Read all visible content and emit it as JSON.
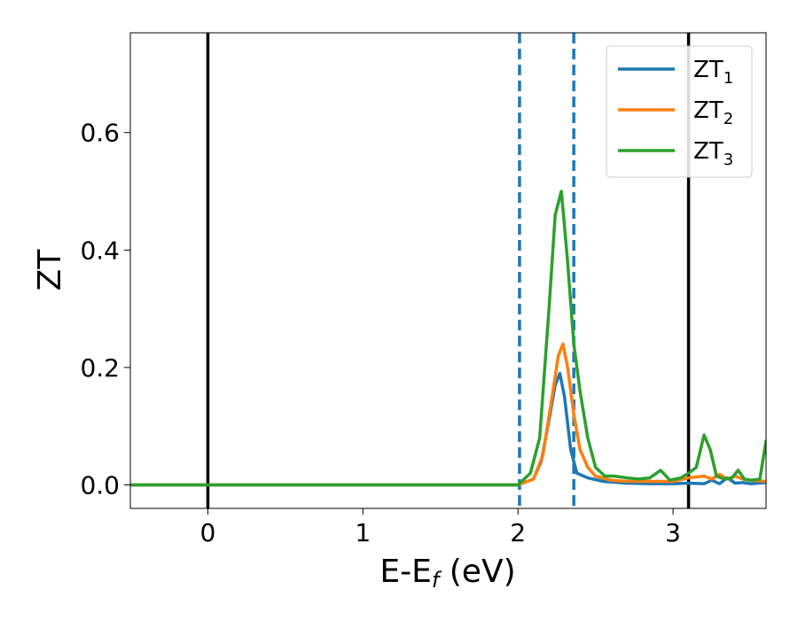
{
  "chart_data": {
    "type": "line",
    "title": "",
    "xlabel": "E-E",
    "xlabel_sub": "f",
    "xlabel_unit": " (eV)",
    "ylabel": "ZT",
    "xlim": [
      -0.5,
      3.6
    ],
    "ylim": [
      -0.04,
      0.77
    ],
    "x_ticks": [
      0,
      1,
      2,
      3
    ],
    "x_tick_labels": [
      "0",
      "1",
      "2",
      "3"
    ],
    "y_ticks": [
      0.0,
      0.2,
      0.4,
      0.6
    ],
    "y_tick_labels": [
      "0.0",
      "0.2",
      "0.4",
      "0.6"
    ],
    "grid": false,
    "legend_position": "top-right",
    "vlines": [
      {
        "x": 0.0,
        "style": "solid",
        "color": "#000000"
      },
      {
        "x": 3.1,
        "style": "solid",
        "color": "#000000"
      },
      {
        "x": 2.01,
        "style": "dashed",
        "color": "#1f77b4"
      },
      {
        "x": 2.36,
        "style": "dashed",
        "color": "#1f77b4"
      }
    ],
    "series": [
      {
        "name": "ZT",
        "name_sub": "1",
        "color": "#1f77b4",
        "x": [
          -0.5,
          2.0,
          2.1,
          2.15,
          2.2,
          2.24,
          2.27,
          2.3,
          2.34,
          2.38,
          2.45,
          2.55,
          2.7,
          2.85,
          3.0,
          3.1,
          3.2,
          3.25,
          3.3,
          3.35,
          3.4,
          3.45,
          3.5,
          3.55,
          3.6
        ],
        "y": [
          0.0,
          0.0,
          0.01,
          0.04,
          0.11,
          0.17,
          0.19,
          0.15,
          0.06,
          0.02,
          0.012,
          0.006,
          0.003,
          0.002,
          0.002,
          0.003,
          0.002,
          0.008,
          0.002,
          0.012,
          0.003,
          0.004,
          0.002,
          0.003,
          0.004
        ]
      },
      {
        "name": "ZT",
        "name_sub": "2",
        "color": "#ff7f0e",
        "x": [
          -0.5,
          2.0,
          2.1,
          2.16,
          2.22,
          2.26,
          2.29,
          2.32,
          2.36,
          2.4,
          2.45,
          2.5,
          2.6,
          2.7,
          2.85,
          3.0,
          3.1,
          3.2,
          3.25,
          3.3,
          3.35,
          3.4,
          3.45,
          3.5,
          3.6
        ],
        "y": [
          0.0,
          0.0,
          0.01,
          0.05,
          0.15,
          0.22,
          0.24,
          0.2,
          0.12,
          0.06,
          0.03,
          0.015,
          0.008,
          0.006,
          0.006,
          0.006,
          0.012,
          0.015,
          0.01,
          0.018,
          0.01,
          0.015,
          0.01,
          0.008,
          0.006
        ]
      },
      {
        "name": "ZT",
        "name_sub": "3",
        "color": "#2ca02c",
        "x": [
          -0.5,
          2.0,
          2.08,
          2.14,
          2.2,
          2.24,
          2.28,
          2.32,
          2.36,
          2.4,
          2.45,
          2.5,
          2.56,
          2.62,
          2.7,
          2.78,
          2.85,
          2.92,
          2.98,
          3.05,
          3.1,
          3.15,
          3.2,
          3.24,
          3.28,
          3.33,
          3.38,
          3.42,
          3.46,
          3.5,
          3.56,
          3.6
        ],
        "y": [
          0.0,
          0.0,
          0.02,
          0.08,
          0.3,
          0.46,
          0.5,
          0.38,
          0.24,
          0.16,
          0.08,
          0.03,
          0.015,
          0.015,
          0.012,
          0.01,
          0.012,
          0.025,
          0.008,
          0.012,
          0.02,
          0.03,
          0.085,
          0.06,
          0.015,
          0.01,
          0.012,
          0.025,
          0.01,
          0.008,
          0.01,
          0.075
        ]
      }
    ]
  }
}
